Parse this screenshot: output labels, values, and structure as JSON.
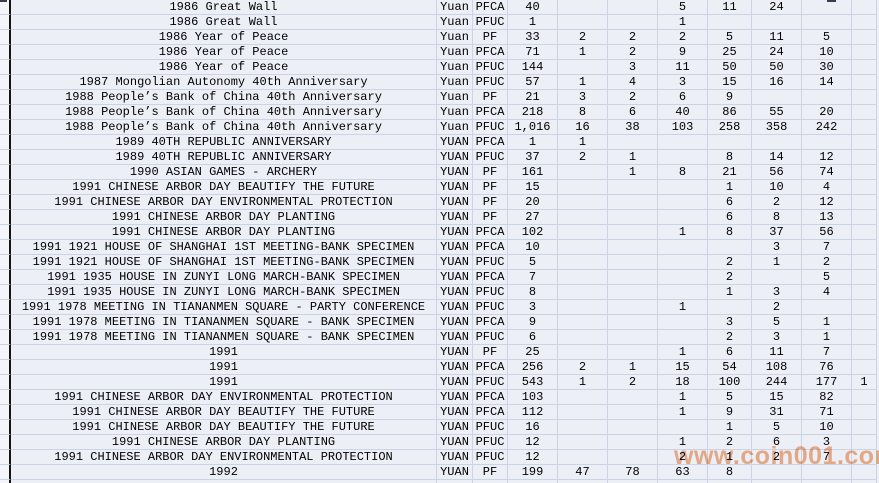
{
  "watermark": {
    "text": "www.coin001.com",
    "color": "#ee8443"
  },
  "colors": {
    "background": "#edeff6",
    "gridline": "#ccd3e3",
    "margin_border": "#141414",
    "text": "#000000"
  },
  "table": {
    "header_visible": false,
    "rows": [
      {
        "desc": "1986 Great Wall",
        "currency": "Yuan",
        "grade": "PFCA",
        "values": [
          "40",
          "",
          "",
          "5",
          "11",
          "24",
          "",
          ""
        ]
      },
      {
        "desc": "1986 Great Wall",
        "currency": "Yuan",
        "grade": "PFUC",
        "values": [
          "1",
          "",
          "",
          "1",
          "",
          "",
          "",
          ""
        ]
      },
      {
        "desc": "1986 Year of Peace",
        "currency": "Yuan",
        "grade": "PF",
        "values": [
          "33",
          "2",
          "2",
          "2",
          "5",
          "11",
          "5",
          ""
        ]
      },
      {
        "desc": "1986 Year of Peace",
        "currency": "Yuan",
        "grade": "PFCA",
        "values": [
          "71",
          "1",
          "2",
          "9",
          "25",
          "24",
          "10",
          ""
        ]
      },
      {
        "desc": "1986 Year of Peace",
        "currency": "Yuan",
        "grade": "PFUC",
        "values": [
          "144",
          "",
          "3",
          "11",
          "50",
          "50",
          "30",
          ""
        ]
      },
      {
        "desc": "1987 Mongolian Autonomy 40th Anniversary",
        "currency": "Yuan",
        "grade": "PFUC",
        "values": [
          "57",
          "1",
          "4",
          "3",
          "15",
          "16",
          "14",
          ""
        ]
      },
      {
        "desc": "1988 People’s Bank of China 40th Anniversary",
        "currency": "Yuan",
        "grade": "PF",
        "values": [
          "21",
          "3",
          "2",
          "6",
          "9",
          "",
          "",
          ""
        ]
      },
      {
        "desc": "1988 People’s Bank of China 40th Anniversary",
        "currency": "Yuan",
        "grade": "PFCA",
        "values": [
          "218",
          "8",
          "6",
          "40",
          "86",
          "55",
          "20",
          ""
        ]
      },
      {
        "desc": "1988 People’s Bank of China 40th Anniversary",
        "currency": "Yuan",
        "grade": "PFUC",
        "values": [
          "1,016",
          "16",
          "38",
          "103",
          "258",
          "358",
          "242",
          ""
        ]
      },
      {
        "desc": "1989 40TH REPUBLIC ANNIVERSARY",
        "currency": "YUAN",
        "grade": "PFCA",
        "values": [
          "1",
          "1",
          "",
          "",
          "",
          "",
          "",
          ""
        ]
      },
      {
        "desc": "1989 40TH REPUBLIC ANNIVERSARY",
        "currency": "YUAN",
        "grade": "PFUC",
        "values": [
          "37",
          "2",
          "1",
          "",
          "8",
          "14",
          "12",
          ""
        ]
      },
      {
        "desc": "1990 ASIAN GAMES - ARCHERY",
        "currency": "YUAN",
        "grade": "PF",
        "values": [
          "161",
          "",
          "1",
          "8",
          "21",
          "56",
          "74",
          ""
        ]
      },
      {
        "desc": "1991 CHINESE ARBOR DAY BEAUTIFY THE FUTURE",
        "currency": "YUAN",
        "grade": "PF",
        "values": [
          "15",
          "",
          "",
          "",
          "1",
          "10",
          "4",
          ""
        ]
      },
      {
        "desc": "1991 CHINESE ARBOR DAY ENVIRONMENTAL PROTECTION",
        "currency": "YUAN",
        "grade": "PF",
        "values": [
          "20",
          "",
          "",
          "",
          "6",
          "2",
          "12",
          ""
        ]
      },
      {
        "desc": "1991 CHINESE ARBOR DAY PLANTING",
        "currency": "YUAN",
        "grade": "PF",
        "values": [
          "27",
          "",
          "",
          "",
          "6",
          "8",
          "13",
          ""
        ]
      },
      {
        "desc": "1991 CHINESE ARBOR DAY PLANTING",
        "currency": "YUAN",
        "grade": "PFCA",
        "values": [
          "102",
          "",
          "",
          "1",
          "8",
          "37",
          "56",
          ""
        ]
      },
      {
        "desc": "1991 1921 HOUSE OF SHANGHAI 1ST MEETING-BANK SPECIMEN",
        "currency": "YUAN",
        "grade": "PFCA",
        "values": [
          "10",
          "",
          "",
          "",
          "",
          "3",
          "7",
          ""
        ]
      },
      {
        "desc": "1991 1921 HOUSE OF SHANGHAI 1ST MEETING-BANK SPECIMEN",
        "currency": "YUAN",
        "grade": "PFUC",
        "values": [
          "5",
          "",
          "",
          "",
          "2",
          "1",
          "2",
          ""
        ]
      },
      {
        "desc": "1991 1935 HOUSE IN ZUNYI LONG MARCH-BANK SPECIMEN",
        "currency": "YUAN",
        "grade": "PFCA",
        "values": [
          "7",
          "",
          "",
          "",
          "2",
          "",
          "5",
          ""
        ]
      },
      {
        "desc": "1991 1935 HOUSE IN ZUNYI LONG MARCH-BANK SPECIMEN",
        "currency": "YUAN",
        "grade": "PFUC",
        "values": [
          "8",
          "",
          "",
          "",
          "1",
          "3",
          "4",
          ""
        ]
      },
      {
        "desc": "1991 1978 MEETING IN TIANANMEN SQUARE - PARTY CONFERENCE",
        "currency": "YUAN",
        "grade": "PFUC",
        "values": [
          "3",
          "",
          "",
          "1",
          "",
          "2",
          "",
          ""
        ]
      },
      {
        "desc": "1991 1978 MEETING IN TIANANMEN SQUARE - BANK SPECIMEN",
        "currency": "YUAN",
        "grade": "PFCA",
        "values": [
          "9",
          "",
          "",
          "",
          "3",
          "5",
          "1",
          ""
        ]
      },
      {
        "desc": "1991 1978 MEETING IN TIANANMEN SQUARE - BANK SPECIMEN",
        "currency": "YUAN",
        "grade": "PFUC",
        "values": [
          "6",
          "",
          "",
          "",
          "2",
          "3",
          "1",
          ""
        ]
      },
      {
        "desc": "1991",
        "currency": "YUAN",
        "grade": "PF",
        "values": [
          "25",
          "",
          "",
          "1",
          "6",
          "11",
          "7",
          ""
        ]
      },
      {
        "desc": "1991",
        "currency": "YUAN",
        "grade": "PFCA",
        "values": [
          "256",
          "2",
          "1",
          "15",
          "54",
          "108",
          "76",
          ""
        ]
      },
      {
        "desc": "1991",
        "currency": "YUAN",
        "grade": "PFUC",
        "values": [
          "543",
          "1",
          "2",
          "18",
          "100",
          "244",
          "177",
          "1"
        ]
      },
      {
        "desc": "1991 CHINESE ARBOR DAY ENVIRONMENTAL PROTECTION",
        "currency": "YUAN",
        "grade": "PFCA",
        "values": [
          "103",
          "",
          "",
          "1",
          "5",
          "15",
          "82",
          ""
        ]
      },
      {
        "desc": "1991 CHINESE ARBOR DAY BEAUTIFY THE FUTURE",
        "currency": "YUAN",
        "grade": "PFCA",
        "values": [
          "112",
          "",
          "",
          "1",
          "9",
          "31",
          "71",
          ""
        ]
      },
      {
        "desc": "1991 CHINESE ARBOR DAY BEAUTIFY THE FUTURE",
        "currency": "YUAN",
        "grade": "PFUC",
        "values": [
          "16",
          "",
          "",
          "",
          "1",
          "5",
          "10",
          ""
        ]
      },
      {
        "desc": "1991 CHINESE ARBOR DAY PLANTING",
        "currency": "YUAN",
        "grade": "PFUC",
        "values": [
          "12",
          "",
          "",
          "1",
          "2",
          "6",
          "3",
          ""
        ]
      },
      {
        "desc": "1991 CHINESE ARBOR DAY ENVIRONMENTAL PROTECTION",
        "currency": "YUAN",
        "grade": "PFUC",
        "values": [
          "12",
          "",
          "",
          "2",
          "1",
          "2",
          "7",
          ""
        ]
      },
      {
        "desc": "1992",
        "currency": "YUAN",
        "grade": "PF",
        "values": [
          "199",
          "47",
          "78",
          "63",
          "8",
          "",
          "",
          ""
        ]
      }
    ]
  }
}
